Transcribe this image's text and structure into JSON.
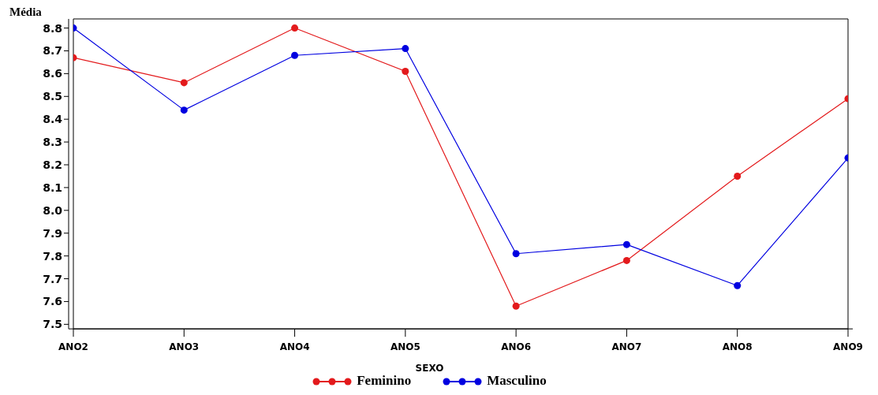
{
  "chart_data": {
    "type": "line",
    "ylabel": "Média",
    "legend_title": "SEXO",
    "categories": [
      "ANO2",
      "ANO3",
      "ANO4",
      "ANO5",
      "ANO6",
      "ANO7",
      "ANO8",
      "ANO9"
    ],
    "series": [
      {
        "name": "Feminino",
        "color": "#e31a1c",
        "values": [
          8.67,
          8.56,
          8.8,
          8.61,
          7.58,
          7.78,
          8.15,
          8.49
        ]
      },
      {
        "name": "Masculino",
        "color": "#0000e0",
        "values": [
          8.8,
          8.44,
          8.68,
          8.71,
          7.81,
          7.85,
          7.67,
          8.23
        ]
      }
    ],
    "ylim": [
      7.48,
      8.84
    ],
    "yticks": [
      {
        "value": 7.5,
        "label": "7.5"
      },
      7.6,
      7.7,
      7.8,
      7.9,
      {
        "value": 8.0,
        "label": "8.0"
      },
      8.1,
      8.2,
      8.3,
      8.4,
      {
        "value": 8.5,
        "label": "8.5"
      },
      8.6,
      8.7,
      8.8
    ],
    "grid": false,
    "legend": "bottom",
    "marker": "circle",
    "line_style": "solid"
  }
}
